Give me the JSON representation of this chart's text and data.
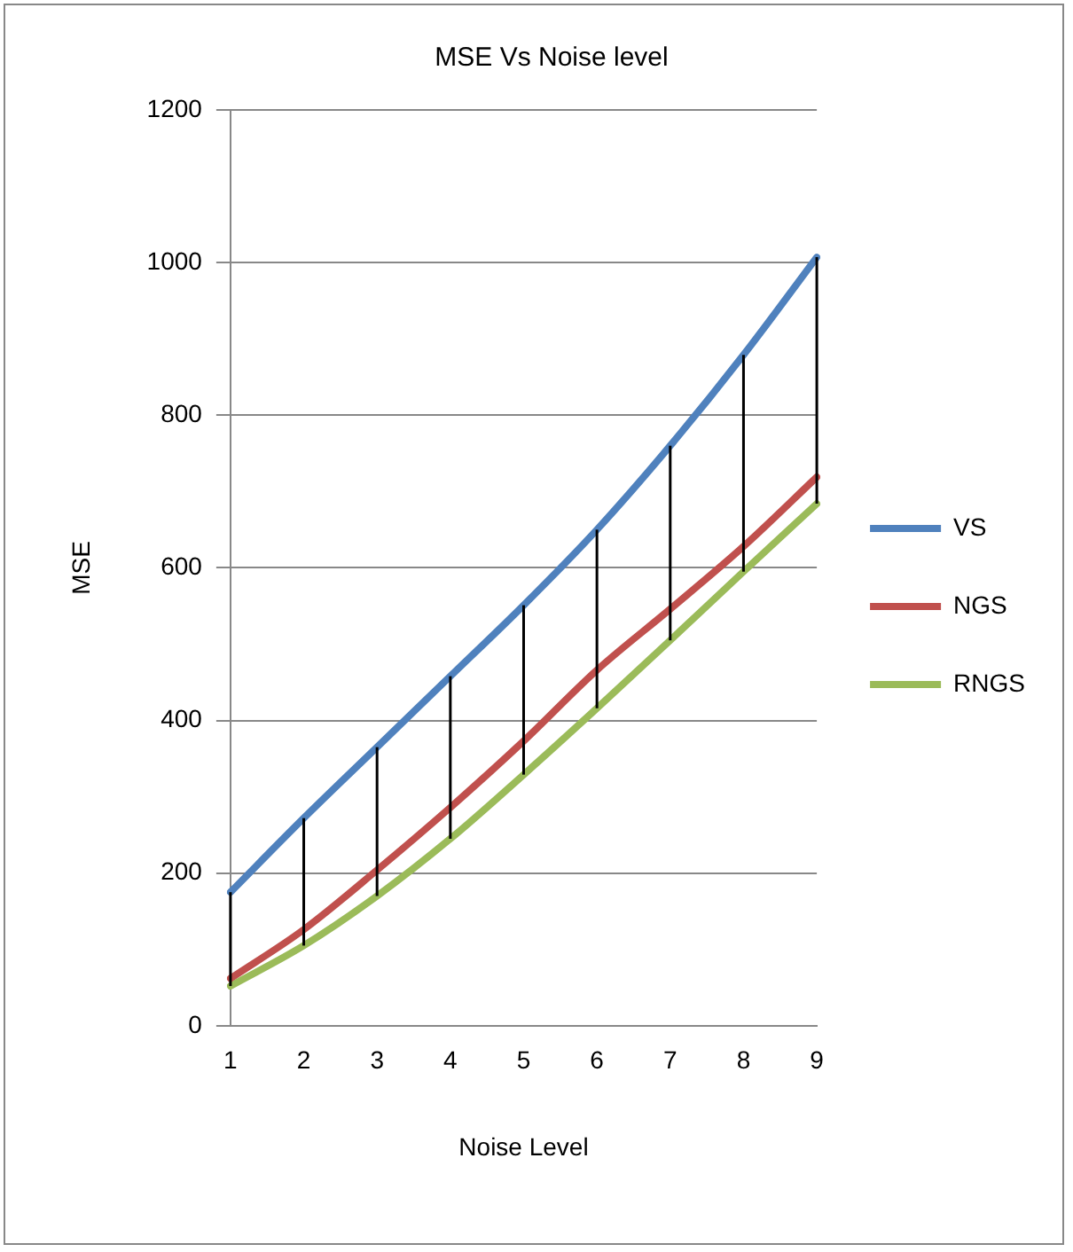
{
  "chart_data": {
    "type": "line",
    "title": "MSE Vs Noise level",
    "xlabel": "Noise Level",
    "ylabel": "MSE",
    "categories": [
      "1",
      "2",
      "3",
      "4",
      "5",
      "6",
      "7",
      "8",
      "9"
    ],
    "series": [
      {
        "name": "VS",
        "color": "#4f81bd",
        "values": [
          175,
          272,
          365,
          458,
          551,
          650,
          760,
          879,
          1007
        ],
        "errors": [
          [
            52,
            175
          ],
          [
            105,
            272
          ],
          [
            170,
            365
          ],
          [
            245,
            458
          ],
          [
            329,
            551
          ],
          [
            416,
            650
          ],
          [
            505,
            760
          ],
          [
            595,
            879
          ],
          [
            684,
            1007
          ]
        ]
      },
      {
        "name": "NGS",
        "color": "#c0504d",
        "values": [
          62,
          126,
          204,
          286,
          373,
          466,
          546,
          628,
          719
        ]
      },
      {
        "name": "RNGS",
        "color": "#9bbb59",
        "values": [
          52,
          105,
          170,
          245,
          329,
          416,
          505,
          595,
          684
        ]
      }
    ],
    "ylim": [
      0,
      1200
    ],
    "yticks": [
      0,
      200,
      400,
      600,
      800,
      1000,
      1200
    ],
    "grid": "y",
    "legend": "right",
    "marker": "none"
  }
}
